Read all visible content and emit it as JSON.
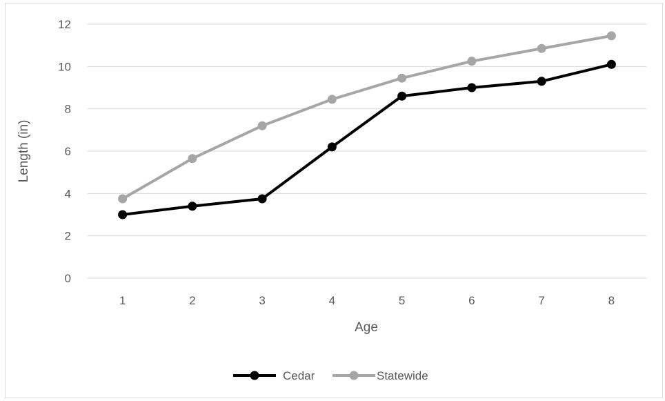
{
  "chart_data": {
    "type": "line",
    "x_label": "Age",
    "y_label": "Length (in)",
    "categories": [
      "1",
      "2",
      "3",
      "4",
      "5",
      "6",
      "7",
      "8"
    ],
    "y_ticks": [
      "0",
      "2",
      "4",
      "6",
      "8",
      "10",
      "12"
    ],
    "ylim": [
      0,
      12
    ],
    "grid": true,
    "legend_position": "bottom",
    "series": [
      {
        "name": "Cedar",
        "color": "#000000",
        "values": [
          3.0,
          3.4,
          3.75,
          6.2,
          8.6,
          9.0,
          9.3,
          10.1
        ]
      },
      {
        "name": "Statewide",
        "color": "#a6a6a6",
        "values": [
          3.75,
          5.65,
          7.2,
          8.45,
          9.45,
          10.25,
          10.85,
          11.45
        ]
      }
    ]
  }
}
